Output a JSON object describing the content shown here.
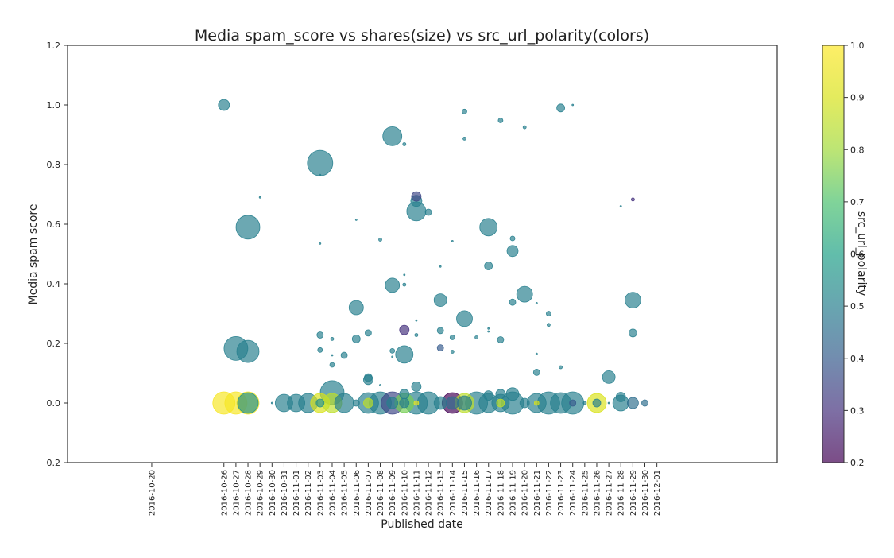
{
  "chart_data": {
    "type": "scatter",
    "title": "Media spam_score vs shares(size) vs src_url_polarity(colors)",
    "xlabel": "Published date",
    "ylabel": "Media spam score",
    "xlim": [
      "2016-10-13",
      "2016-12-11"
    ],
    "ylim": [
      -0.2,
      1.2
    ],
    "y_ticks": [
      -0.2,
      0.0,
      0.2,
      0.4,
      0.6,
      0.8,
      1.0,
      1.2
    ],
    "y_tick_labels": [
      "−0.2",
      "0.0",
      "0.2",
      "0.4",
      "0.6",
      "0.8",
      "1.0",
      "1.2"
    ],
    "x_ticks": [
      "2016-10-20",
      "2016-10-26",
      "2016-10-27",
      "2016-10-28",
      "2016-10-29",
      "2016-10-30",
      "2016-10-31",
      "2016-11-01",
      "2016-11-02",
      "2016-11-03",
      "2016-11-04",
      "2016-11-05",
      "2016-11-06",
      "2016-11-07",
      "2016-11-08",
      "2016-11-09",
      "2016-11-10",
      "2016-11-11",
      "2016-11-12",
      "2016-11-13",
      "2016-11-14",
      "2016-11-15",
      "2016-11-16",
      "2016-11-17",
      "2016-11-18",
      "2016-11-19",
      "2016-11-20",
      "2016-11-21",
      "2016-11-22",
      "2016-11-23",
      "2016-11-24",
      "2016-11-25",
      "2016-11-26",
      "2016-11-27",
      "2016-11-28",
      "2016-11-29",
      "2016-11-30",
      "2016-12-01"
    ],
    "colorbar": {
      "label": "src_url_polarity",
      "range": [
        0.2,
        1.0
      ],
      "ticks": [
        "0.2",
        "0.3",
        "0.4",
        "0.5",
        "0.6",
        "0.7",
        "0.8",
        "0.9",
        "1.0"
      ],
      "colormap": "viridis"
    },
    "grid": false,
    "points": [
      {
        "x": "2016-10-26",
        "y": 0.0,
        "size": 14,
        "c": 0.98
      },
      {
        "x": "2016-10-27",
        "y": 0.0,
        "size": 14,
        "c": 0.98
      },
      {
        "x": "2016-10-28",
        "y": 0.0,
        "size": 14,
        "c": 0.98
      },
      {
        "x": "2016-10-28",
        "y": 0.0,
        "size": 13,
        "c": 0.55
      },
      {
        "x": "2016-10-26",
        "y": 1.0,
        "size": 7,
        "c": 0.5
      },
      {
        "x": "2016-10-27",
        "y": 0.183,
        "size": 15,
        "c": 0.5
      },
      {
        "x": "2016-10-28",
        "y": 0.173,
        "size": 14,
        "c": 0.5
      },
      {
        "x": "2016-10-28",
        "y": 0.59,
        "size": 15,
        "c": 0.5
      },
      {
        "x": "2016-10-29",
        "y": 0.69,
        "size": 1,
        "c": 0.5
      },
      {
        "x": "2016-10-30",
        "y": 0.0,
        "size": 1,
        "c": 0.5
      },
      {
        "x": "2016-10-31",
        "y": 0.0,
        "size": 11,
        "c": 0.5
      },
      {
        "x": "2016-11-01",
        "y": 0.0,
        "size": 11,
        "c": 0.5
      },
      {
        "x": "2016-11-02",
        "y": 0.0,
        "size": 12,
        "c": 0.5
      },
      {
        "x": "2016-11-03",
        "y": 0.0,
        "size": 12,
        "c": 0.9
      },
      {
        "x": "2016-11-03",
        "y": 0.0,
        "size": 5,
        "c": 0.55
      },
      {
        "x": "2016-11-03",
        "y": 0.805,
        "size": 16,
        "c": 0.5
      },
      {
        "x": "2016-11-03",
        "y": 0.535,
        "size": 1,
        "c": 0.5
      },
      {
        "x": "2016-11-03",
        "y": 0.228,
        "size": 4,
        "c": 0.5
      },
      {
        "x": "2016-11-03",
        "y": 0.178,
        "size": 3,
        "c": 0.5
      },
      {
        "x": "2016-11-03",
        "y": 0.765,
        "size": 1,
        "c": 0.5
      },
      {
        "x": "2016-11-04",
        "y": 0.0,
        "size": 12,
        "c": 0.85
      },
      {
        "x": "2016-11-04",
        "y": 0.035,
        "size": 15,
        "c": 0.5
      },
      {
        "x": "2016-11-04",
        "y": 0.215,
        "size": 2,
        "c": 0.5
      },
      {
        "x": "2016-11-04",
        "y": 0.128,
        "size": 3,
        "c": 0.5
      },
      {
        "x": "2016-11-04",
        "y": 0.16,
        "size": 1,
        "c": 0.5
      },
      {
        "x": "2016-11-05",
        "y": 0.0,
        "size": 12,
        "c": 0.5
      },
      {
        "x": "2016-11-05",
        "y": 0.16,
        "size": 4,
        "c": 0.5
      },
      {
        "x": "2016-11-06",
        "y": 0.32,
        "size": 9,
        "c": 0.5
      },
      {
        "x": "2016-11-06",
        "y": 0.215,
        "size": 5,
        "c": 0.5
      },
      {
        "x": "2016-11-06",
        "y": 0.615,
        "size": 1,
        "c": 0.5
      },
      {
        "x": "2016-11-06",
        "y": 0.0,
        "size": 4,
        "c": 0.5
      },
      {
        "x": "2016-11-07",
        "y": 0.0,
        "size": 13,
        "c": 0.5
      },
      {
        "x": "2016-11-07",
        "y": 0.0,
        "size": 6,
        "c": 0.85
      },
      {
        "x": "2016-11-07",
        "y": 0.078,
        "size": 6,
        "c": 0.5
      },
      {
        "x": "2016-11-07",
        "y": 0.085,
        "size": 5,
        "c": 0.5
      },
      {
        "x": "2016-11-07",
        "y": 0.235,
        "size": 4,
        "c": 0.5
      },
      {
        "x": "2016-11-08",
        "y": 0.0,
        "size": 14,
        "c": 0.5
      },
      {
        "x": "2016-11-08",
        "y": 0.548,
        "size": 2,
        "c": 0.5
      },
      {
        "x": "2016-11-08",
        "y": 0.06,
        "size": 1,
        "c": 0.5
      },
      {
        "x": "2016-11-09",
        "y": 0.0,
        "size": 14,
        "c": 0.35
      },
      {
        "x": "2016-11-09",
        "y": 0.0,
        "size": 7,
        "c": 0.5
      },
      {
        "x": "2016-11-09",
        "y": 0.895,
        "size": 12,
        "c": 0.5
      },
      {
        "x": "2016-11-09",
        "y": 0.395,
        "size": 9,
        "c": 0.5
      },
      {
        "x": "2016-11-09",
        "y": 0.175,
        "size": 3,
        "c": 0.5
      },
      {
        "x": "2016-11-09",
        "y": 0.155,
        "size": 1,
        "c": 0.5
      },
      {
        "x": "2016-11-10",
        "y": 0.0,
        "size": 12,
        "c": 0.75
      },
      {
        "x": "2016-11-10",
        "y": 0.0,
        "size": 6,
        "c": 0.5
      },
      {
        "x": "2016-11-10",
        "y": 0.03,
        "size": 6,
        "c": 0.5
      },
      {
        "x": "2016-11-10",
        "y": 0.163,
        "size": 11,
        "c": 0.5
      },
      {
        "x": "2016-11-10",
        "y": 0.868,
        "size": 2,
        "c": 0.5
      },
      {
        "x": "2016-11-10",
        "y": 0.43,
        "size": 1,
        "c": 0.5
      },
      {
        "x": "2016-11-10",
        "y": 0.397,
        "size": 2,
        "c": 0.5
      },
      {
        "x": "2016-11-10",
        "y": 0.245,
        "size": 6,
        "c": 0.3
      },
      {
        "x": "2016-11-11",
        "y": 0.0,
        "size": 14,
        "c": 0.5
      },
      {
        "x": "2016-11-11",
        "y": 0.0,
        "size": 3,
        "c": 0.95
      },
      {
        "x": "2016-11-11",
        "y": 0.055,
        "size": 6,
        "c": 0.5
      },
      {
        "x": "2016-11-11",
        "y": 0.693,
        "size": 6,
        "c": 0.35
      },
      {
        "x": "2016-11-11",
        "y": 0.678,
        "size": 7,
        "c": 0.5
      },
      {
        "x": "2016-11-11",
        "y": 0.643,
        "size": 12,
        "c": 0.5
      },
      {
        "x": "2016-11-11",
        "y": 0.277,
        "size": 1,
        "c": 0.5
      },
      {
        "x": "2016-11-11",
        "y": 0.228,
        "size": 2,
        "c": 0.5
      },
      {
        "x": "2016-11-12",
        "y": 0.0,
        "size": 14,
        "c": 0.5
      },
      {
        "x": "2016-11-12",
        "y": 0.64,
        "size": 4,
        "c": 0.5
      },
      {
        "x": "2016-11-13",
        "y": 0.0,
        "size": 8,
        "c": 0.5
      },
      {
        "x": "2016-11-13",
        "y": 0.345,
        "size": 8,
        "c": 0.5
      },
      {
        "x": "2016-11-13",
        "y": 0.243,
        "size": 4,
        "c": 0.5
      },
      {
        "x": "2016-11-13",
        "y": 0.185,
        "size": 4,
        "c": 0.4
      },
      {
        "x": "2016-11-13",
        "y": 0.458,
        "size": 1,
        "c": 0.5
      },
      {
        "x": "2016-11-14",
        "y": 0.0,
        "size": 13,
        "c": 0.2
      },
      {
        "x": "2016-11-14",
        "y": 0.0,
        "size": 8,
        "c": 0.45
      },
      {
        "x": "2016-11-14",
        "y": 0.543,
        "size": 1,
        "c": 0.5
      },
      {
        "x": "2016-11-14",
        "y": 0.22,
        "size": 3,
        "c": 0.5
      },
      {
        "x": "2016-11-14",
        "y": 0.172,
        "size": 2,
        "c": 0.5
      },
      {
        "x": "2016-11-15",
        "y": 0.0,
        "size": 12,
        "c": 0.85
      },
      {
        "x": "2016-11-15",
        "y": 0.0,
        "size": 9,
        "c": 0.5
      },
      {
        "x": "2016-11-15",
        "y": 0.978,
        "size": 3,
        "c": 0.5
      },
      {
        "x": "2016-11-15",
        "y": 0.887,
        "size": 2,
        "c": 0.5
      },
      {
        "x": "2016-11-15",
        "y": 0.283,
        "size": 10,
        "c": 0.5
      },
      {
        "x": "2016-11-16",
        "y": 0.0,
        "size": 14,
        "c": 0.5
      },
      {
        "x": "2016-11-16",
        "y": 0.22,
        "size": 2,
        "c": 0.5
      },
      {
        "x": "2016-11-17",
        "y": 0.0,
        "size": 12,
        "c": 0.5
      },
      {
        "x": "2016-11-17",
        "y": 0.025,
        "size": 6,
        "c": 0.5
      },
      {
        "x": "2016-11-17",
        "y": 0.59,
        "size": 11,
        "c": 0.5
      },
      {
        "x": "2016-11-17",
        "y": 0.46,
        "size": 5,
        "c": 0.5
      },
      {
        "x": "2016-11-17",
        "y": 0.25,
        "size": 1,
        "c": 0.5
      },
      {
        "x": "2016-11-17",
        "y": 0.24,
        "size": 1,
        "c": 0.5
      },
      {
        "x": "2016-11-18",
        "y": 0.0,
        "size": 11,
        "c": 0.5
      },
      {
        "x": "2016-11-18",
        "y": 0.0,
        "size": 5,
        "c": 0.85
      },
      {
        "x": "2016-11-18",
        "y": 0.03,
        "size": 6,
        "c": 0.5
      },
      {
        "x": "2016-11-18",
        "y": 0.948,
        "size": 3,
        "c": 0.5
      },
      {
        "x": "2016-11-18",
        "y": 0.212,
        "size": 4,
        "c": 0.5
      },
      {
        "x": "2016-11-19",
        "y": 0.0,
        "size": 14,
        "c": 0.5
      },
      {
        "x": "2016-11-19",
        "y": 0.03,
        "size": 8,
        "c": 0.5
      },
      {
        "x": "2016-11-19",
        "y": 0.552,
        "size": 3,
        "c": 0.5
      },
      {
        "x": "2016-11-19",
        "y": 0.51,
        "size": 7,
        "c": 0.5
      },
      {
        "x": "2016-11-19",
        "y": 0.338,
        "size": 4,
        "c": 0.5
      },
      {
        "x": "2016-11-20",
        "y": 0.0,
        "size": 6,
        "c": 0.5
      },
      {
        "x": "2016-11-20",
        "y": 0.925,
        "size": 2,
        "c": 0.5
      },
      {
        "x": "2016-11-20",
        "y": 0.365,
        "size": 10,
        "c": 0.5
      },
      {
        "x": "2016-11-21",
        "y": 0.0,
        "size": 12,
        "c": 0.5
      },
      {
        "x": "2016-11-21",
        "y": 0.0,
        "size": 3,
        "c": 0.9
      },
      {
        "x": "2016-11-21",
        "y": 0.335,
        "size": 1,
        "c": 0.5
      },
      {
        "x": "2016-11-21",
        "y": 0.165,
        "size": 1,
        "c": 0.5
      },
      {
        "x": "2016-11-21",
        "y": 0.103,
        "size": 4,
        "c": 0.5
      },
      {
        "x": "2016-11-22",
        "y": 0.0,
        "size": 14,
        "c": 0.5
      },
      {
        "x": "2016-11-22",
        "y": 0.3,
        "size": 3,
        "c": 0.5
      },
      {
        "x": "2016-11-22",
        "y": 0.262,
        "size": 2,
        "c": 0.5
      },
      {
        "x": "2016-11-23",
        "y": 0.0,
        "size": 13,
        "c": 0.5
      },
      {
        "x": "2016-11-23",
        "y": 0.99,
        "size": 5,
        "c": 0.5
      },
      {
        "x": "2016-11-23",
        "y": 0.12,
        "size": 2,
        "c": 0.5
      },
      {
        "x": "2016-11-24",
        "y": 0.0,
        "size": 14,
        "c": 0.5
      },
      {
        "x": "2016-11-24",
        "y": 0.0,
        "size": 4,
        "c": 0.4
      },
      {
        "x": "2016-11-24",
        "y": 1.0,
        "size": 1,
        "c": 0.5
      },
      {
        "x": "2016-11-25",
        "y": 0.0,
        "size": 2,
        "c": 0.5
      },
      {
        "x": "2016-11-26",
        "y": 0.0,
        "size": 12,
        "c": 0.9
      },
      {
        "x": "2016-11-26",
        "y": 0.0,
        "size": 5,
        "c": 0.5
      },
      {
        "x": "2016-11-27",
        "y": 0.087,
        "size": 8,
        "c": 0.5
      },
      {
        "x": "2016-11-27",
        "y": 0.0,
        "size": 1,
        "c": 0.5
      },
      {
        "x": "2016-11-28",
        "y": 0.0,
        "size": 10,
        "c": 0.5
      },
      {
        "x": "2016-11-28",
        "y": 0.02,
        "size": 6,
        "c": 0.5
      },
      {
        "x": "2016-11-28",
        "y": 0.66,
        "size": 1,
        "c": 0.5
      },
      {
        "x": "2016-11-29",
        "y": 0.0,
        "size": 7,
        "c": 0.45
      },
      {
        "x": "2016-11-29",
        "y": 0.345,
        "size": 10,
        "c": 0.5
      },
      {
        "x": "2016-11-29",
        "y": 0.235,
        "size": 5,
        "c": 0.5
      },
      {
        "x": "2016-11-29",
        "y": 0.683,
        "size": 2,
        "c": 0.3
      },
      {
        "x": "2016-11-30",
        "y": 0.0,
        "size": 4,
        "c": 0.45
      }
    ]
  }
}
